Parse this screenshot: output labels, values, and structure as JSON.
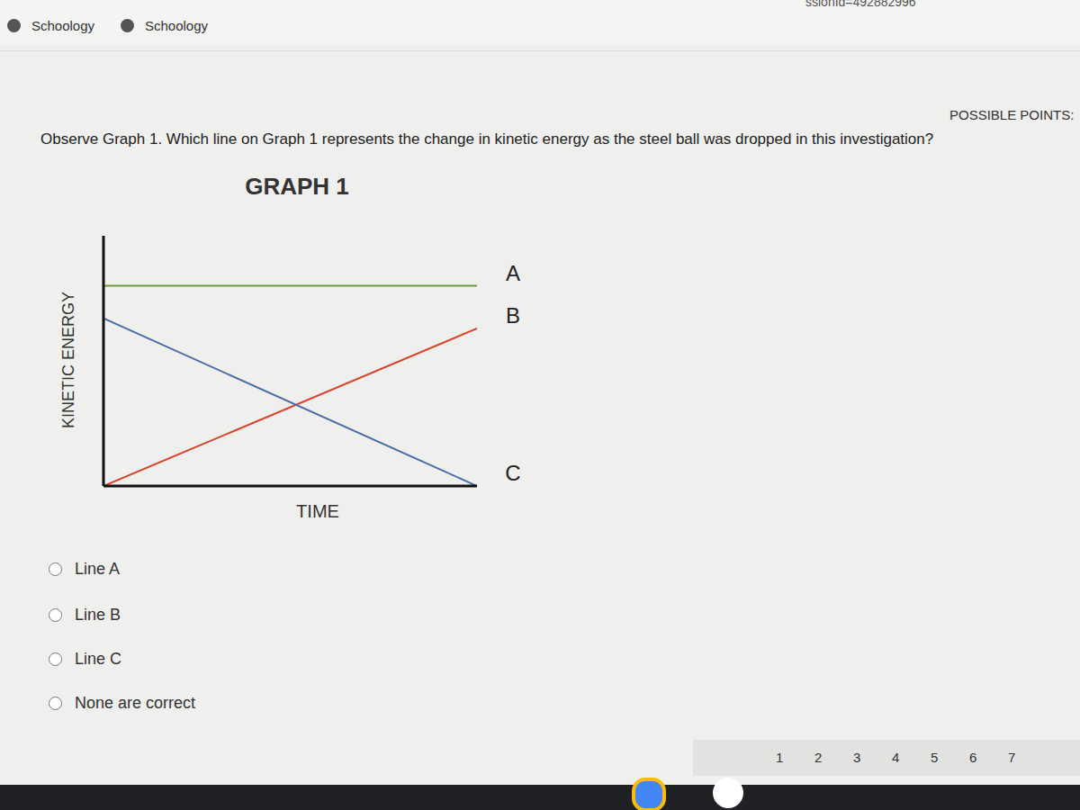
{
  "browser": {
    "tabs": [
      "Schoology",
      "Schoology"
    ],
    "url_fragment": "ssionId=492882996"
  },
  "question": {
    "points_label": "POSSIBLE POINTS:",
    "text": "Observe Graph 1. Which line on Graph 1 represents the change in kinetic energy as the steel ball was dropped in this investigation?",
    "options": [
      "Line A",
      "Line B",
      "Line C",
      "None are correct"
    ]
  },
  "pagination": [
    1,
    2,
    3,
    4,
    5,
    6,
    7
  ],
  "chart_data": {
    "type": "line",
    "title": "GRAPH 1",
    "x_label": "TIME",
    "y_label": "KINETIC ENERGY",
    "x": [
      0,
      100
    ],
    "xlim": [
      0,
      100
    ],
    "ylim": [
      0,
      100
    ],
    "tick_labels": false,
    "series": [
      {
        "name": "A",
        "color": "#6a9a3a",
        "values": [
          80,
          80
        ]
      },
      {
        "name": "B",
        "color": "#d9432e",
        "values": [
          0,
          63
        ]
      },
      {
        "name": "C",
        "color": "#4a6ea8",
        "values": [
          67,
          0
        ]
      }
    ]
  }
}
